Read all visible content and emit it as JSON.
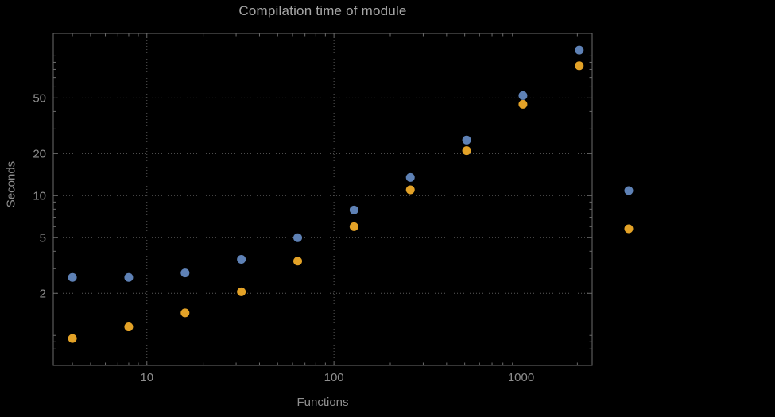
{
  "chart_data": {
    "type": "scatter",
    "title": "Compilation time of module",
    "xlabel": "Functions",
    "ylabel": "Seconds",
    "x_scale": "log",
    "y_scale": "log",
    "x": [
      4,
      8,
      16,
      32,
      64,
      128,
      256,
      512,
      1024,
      2048
    ],
    "series": [
      {
        "name": "series-1-blue",
        "color": "#5e81b5",
        "values": [
          2.6,
          2.6,
          2.8,
          3.5,
          5.0,
          7.9,
          13.5,
          25,
          52,
          110
        ]
      },
      {
        "name": "series-2-orange",
        "color": "#e3a227",
        "values": [
          0.95,
          1.15,
          1.45,
          2.05,
          3.4,
          6.0,
          11,
          21,
          45,
          85
        ]
      }
    ],
    "x_ticks": [
      10,
      100,
      1000
    ],
    "y_ticks": [
      2,
      5,
      10,
      20,
      50
    ],
    "xlim": [
      3.16,
      2400
    ],
    "ylim": [
      0.61,
      145
    ],
    "grid": "dotted",
    "legend_position": "right"
  },
  "colors": {
    "background": "#000000",
    "frame": "#6b6b6b",
    "grid": "#5a5a5a",
    "tick_label": "#8f8f8f",
    "title": "#a6a6a6",
    "axis_label": "#8f8f8f"
  }
}
